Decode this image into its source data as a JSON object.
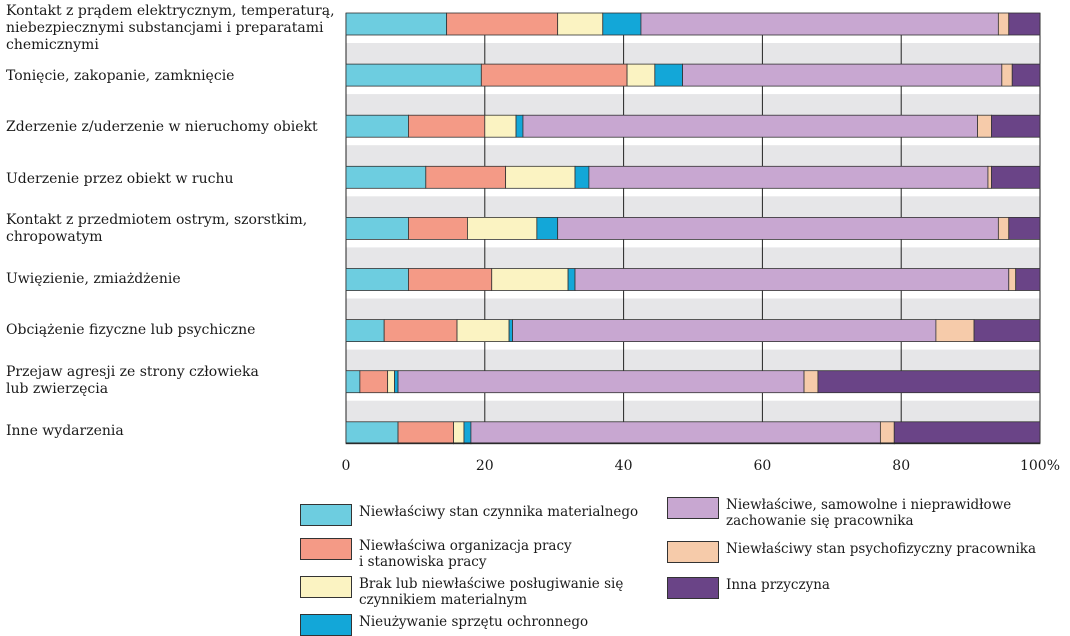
{
  "chart_data": {
    "type": "bar",
    "stacked": true,
    "orientation": "horizontal",
    "categories": [
      "Kontakt z prądem elektrycznym, temperaturą, niebezpiecznymi substancjami i preparatami chemicznymi",
      "Tonięcie, zakopanie, zamknięcie",
      "Zderzenie z/uderzenie w nieruchomy obiekt",
      "Uderzenie przez obiekt w ruchu",
      "Kontakt z przedmiotem ostrym, szorstkim, chropowatym",
      "Uwięzienie, zmiażdżenie",
      "Obciążenie fizyczne lub psychiczne",
      "Przejaw agresji ze strony człowieka lub zwierzęcia",
      "Inne wydarzenia"
    ],
    "series": [
      {
        "name": "Niewłaściwy stan czynnika materialnego",
        "color": "#6dcde0",
        "values": [
          14.5,
          19.5,
          9,
          11.5,
          9,
          9,
          5.5,
          2,
          7.5
        ]
      },
      {
        "name": "Niewłaściwa organizacja pracy i stanowiska pracy",
        "color": "#f49a86",
        "values": [
          16,
          21,
          11,
          11.5,
          8.5,
          12,
          10.5,
          4,
          8
        ]
      },
      {
        "name": "Brak lub niewłaściwe posługiwanie się czynnikiem materialnym",
        "color": "#fbf3c2",
        "values": [
          6.5,
          4,
          4.5,
          10,
          10,
          11,
          7.5,
          1,
          1.5
        ]
      },
      {
        "name": "Nieużywanie sprzętu ochronnego",
        "color": "#13a7d8",
        "values": [
          5.5,
          4,
          1,
          2,
          3,
          1,
          0.5,
          0.5,
          1
        ]
      },
      {
        "name": "Niewłaściwe, samowolne i nieprawidłowe zachowanie się pracownika",
        "color": "#c8a7d1",
        "values": [
          51.5,
          46,
          65.5,
          57.5,
          63.5,
          62.5,
          61,
          58.5,
          59
        ]
      },
      {
        "name": "Niewłaściwy stan psychofizyczny pracownika",
        "color": "#f6cbaa",
        "values": [
          1.5,
          1.5,
          2,
          0.5,
          1.5,
          1,
          5.5,
          2,
          2
        ]
      },
      {
        "name": "Inna przyczyna",
        "color": "#6a4487",
        "values": [
          4.5,
          4,
          7,
          7,
          4.5,
          3.5,
          9.5,
          32,
          21
        ]
      }
    ],
    "xticks": [
      "0",
      "20",
      "40",
      "60",
      "80",
      "100%"
    ],
    "xlim": [
      0,
      100
    ],
    "grid": true,
    "legend_position": "bottom"
  },
  "legend": {
    "col1": [
      {
        "label": "Niewłaściwy stan czynnika materialnego",
        "color": "#6dcde0"
      },
      {
        "label": "Niewłaściwa organizacja pracy\ni stanowiska pracy",
        "color": "#f49a86"
      },
      {
        "label": "Brak lub niewłaściwe posługiwanie się\nczynnikiem materialnym",
        "color": "#fbf3c2"
      },
      {
        "label": "Nieużywanie sprzętu ochronnego",
        "color": "#13a7d8"
      }
    ],
    "col2": [
      {
        "label": "Niewłaściwe, samowolne i nieprawidłowe\nzachowanie się pracownika",
        "color": "#c8a7d1"
      },
      {
        "label": "Niewłaściwy stan psychofizyczny pracownika",
        "color": "#f6cbaa"
      },
      {
        "label": "Inna przyczyna",
        "color": "#6a4487"
      }
    ]
  },
  "category_labels": [
    "Kontakt z prądem elektrycznym, temperaturą,\nniebezpiecznymi substancjami i preparatami\nchemicznymi",
    "Tonięcie, zakopanie, zamknięcie",
    "Zderzenie z/uderzenie w nieruchomy obiekt",
    "Uderzenie przez obiekt w ruchu",
    "Kontakt z przedmiotem ostrym, szorstkim,\nchropowatym",
    "Uwięzienie, zmiażdżenie",
    "Obciążenie fizyczne lub psychiczne",
    "Przejaw agresji ze strony człowieka\nlub zwierzęcia",
    "Inne wydarzenia"
  ]
}
